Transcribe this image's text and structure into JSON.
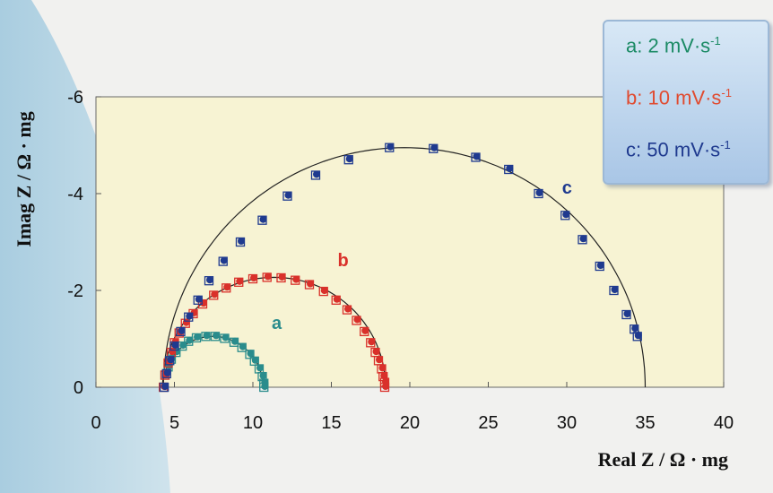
{
  "chart_data": {
    "type": "scatter",
    "xlabel": "Real Z / Ω · mg",
    "ylabel": "Imag Z / Ω · mg",
    "xlim": [
      0,
      40
    ],
    "ylim": [
      0,
      -6
    ],
    "x_ticks": [
      "0",
      "5",
      "10",
      "15",
      "20",
      "25",
      "30",
      "35",
      "40"
    ],
    "y_ticks": [
      "0",
      "-2",
      "-4",
      "-6"
    ],
    "x_tick_values": [
      0,
      5,
      10,
      15,
      20,
      25,
      30,
      35,
      40
    ],
    "y_tick_values": [
      0,
      -2,
      -4,
      -6
    ],
    "legend_position": "top-right",
    "legend": [
      {
        "key": "a:",
        "value": "2",
        "unit": "mV·s",
        "exp": "-1",
        "color": "#1a8a64"
      },
      {
        "key": "b:",
        "value": "10",
        "unit": "mV·s",
        "exp": "-1",
        "color": "#e04b30"
      },
      {
        "key": "c:",
        "value": "50",
        "unit": "mV·s",
        "exp": "-1",
        "color": "#1f3a8f"
      }
    ],
    "series": [
      {
        "label": "a",
        "color": "#2a8c8c",
        "fit": {
          "center_x": 7.45,
          "radius": 3.2,
          "depth": 1.05
        },
        "x": [
          4.3,
          4.4,
          4.6,
          4.8,
          5.1,
          5.5,
          5.9,
          6.4,
          7.0,
          7.6,
          8.2,
          8.8,
          9.3,
          9.8,
          10.1,
          10.4,
          10.6,
          10.7,
          10.7
        ],
        "y": [
          0.0,
          -0.25,
          -0.42,
          -0.58,
          -0.72,
          -0.85,
          -0.95,
          -1.02,
          -1.05,
          -1.05,
          -1.01,
          -0.93,
          -0.82,
          -0.68,
          -0.54,
          -0.38,
          -0.22,
          -0.08,
          0.0
        ]
      },
      {
        "label": "b",
        "color": "#d9302a",
        "fit": {
          "center_x": 11.35,
          "radius": 7.1,
          "depth": 2.27
        },
        "x": [
          4.3,
          4.4,
          4.6,
          4.8,
          5.0,
          5.3,
          5.7,
          6.2,
          6.8,
          7.5,
          8.3,
          9.1,
          10.0,
          10.9,
          11.8,
          12.7,
          13.6,
          14.5,
          15.3,
          16.0,
          16.6,
          17.1,
          17.5,
          17.8,
          18.0,
          18.2,
          18.3,
          18.4,
          18.4
        ],
        "y": [
          0.0,
          -0.25,
          -0.5,
          -0.72,
          -0.92,
          -1.12,
          -1.32,
          -1.52,
          -1.72,
          -1.9,
          -2.05,
          -2.17,
          -2.24,
          -2.27,
          -2.26,
          -2.21,
          -2.12,
          -1.98,
          -1.8,
          -1.6,
          -1.38,
          -1.15,
          -0.92,
          -0.72,
          -0.55,
          -0.38,
          -0.22,
          -0.1,
          0.0
        ]
      },
      {
        "label": "c",
        "color": "#1f3a8f",
        "fit": {
          "center_x": 19.65,
          "radius": 15.35,
          "depth": 4.95
        },
        "x": [
          4.35,
          4.5,
          4.7,
          5.0,
          5.4,
          5.9,
          6.5,
          7.2,
          8.1,
          9.2,
          10.6,
          12.2,
          14.0,
          16.1,
          18.7,
          21.5,
          24.2,
          26.3,
          28.2,
          29.9,
          31.0,
          32.1,
          33.0,
          33.8,
          34.3,
          34.5
        ],
        "y": [
          0.0,
          -0.28,
          -0.55,
          -0.85,
          -1.15,
          -1.45,
          -1.8,
          -2.2,
          -2.6,
          -3.0,
          -3.45,
          -3.95,
          -4.38,
          -4.7,
          -4.95,
          -4.93,
          -4.75,
          -4.5,
          -4.0,
          -3.55,
          -3.05,
          -2.5,
          -2.0,
          -1.5,
          -1.2,
          -1.05
        ]
      }
    ]
  }
}
